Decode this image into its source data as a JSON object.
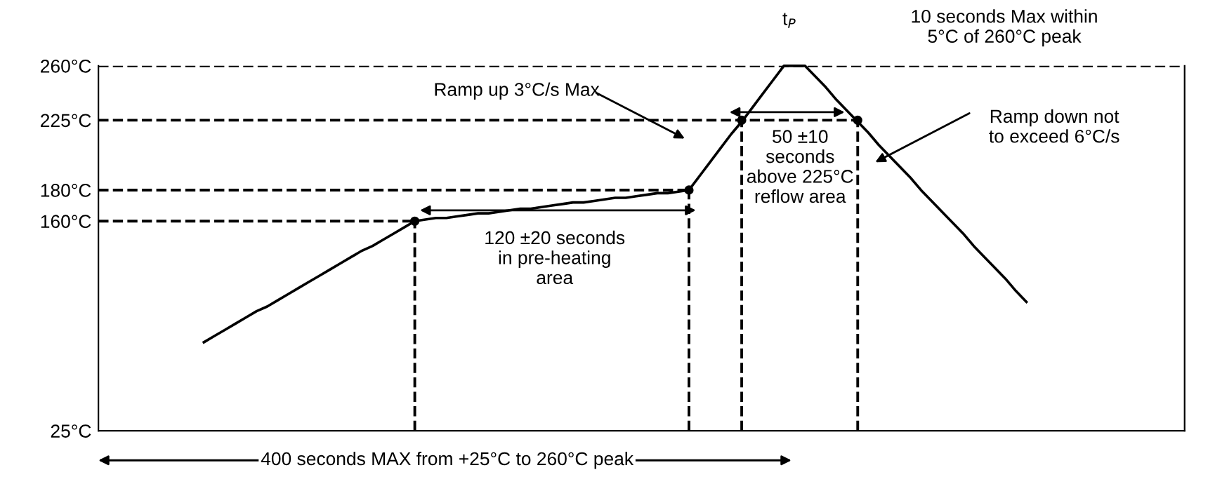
{
  "chart_data": {
    "type": "line",
    "categories": [
      null,
      null,
      null,
      null,
      null,
      null,
      null,
      null,
      null,
      null,
      null,
      null,
      null,
      null,
      null,
      null,
      null,
      null,
      null,
      null,
      null,
      null,
      null,
      null,
      null,
      null,
      null,
      null,
      null,
      null,
      null,
      null,
      null,
      null,
      null,
      null,
      null,
      null,
      null,
      null,
      null,
      null,
      null,
      null,
      null,
      null,
      null,
      null,
      null,
      null,
      null,
      null,
      null,
      null,
      null,
      null,
      null,
      null,
      null,
      null,
      null,
      null,
      null,
      null,
      null,
      null,
      null,
      null,
      null,
      null,
      null,
      null,
      null,
      null,
      null,
      null,
      null,
      null,
      null,
      null,
      null,
      null,
      null,
      null,
      null,
      null,
      null,
      null,
      null,
      null,
      null,
      null,
      null,
      null,
      null,
      null,
      null,
      null,
      null,
      null,
      null,
      null,
      null,
      null
    ],
    "series": [
      {
        "color": "#000000",
        "line_style": "solid",
        "values": [
          null,
          null,
          null,
          null,
          null,
          null,
          null,
          null,
          null,
          null,
          82,
          86,
          90,
          94,
          98,
          102,
          105,
          109,
          113,
          117,
          121,
          125,
          129,
          133,
          137,
          141,
          144,
          148,
          152,
          156,
          160,
          161,
          162,
          162,
          163,
          164,
          165,
          165,
          166,
          167,
          168,
          168,
          169,
          170,
          171,
          172,
          172,
          173,
          174,
          175,
          175,
          176,
          177,
          178,
          178,
          179,
          180,
          189,
          198,
          207,
          216,
          224,
          233,
          242,
          251,
          260,
          260,
          260,
          253,
          246,
          238,
          231,
          224,
          217,
          209,
          202,
          195,
          188,
          180,
          173,
          166,
          159,
          152,
          144,
          137,
          130,
          123,
          115,
          108,
          null,
          null,
          null,
          null,
          null,
          null,
          null,
          null,
          null,
          null,
          null,
          null,
          null,
          null,
          null
        ]
      },
      {
        "color": "#000000",
        "line_style": "dashed",
        "values": [
          225,
          225,
          225,
          225,
          225,
          225,
          225,
          225,
          225,
          225,
          225,
          225,
          225,
          225,
          225,
          225,
          225,
          225,
          225,
          225,
          225,
          225,
          225,
          225,
          225,
          225,
          225,
          225,
          225,
          225,
          225,
          225,
          225,
          225,
          225,
          225,
          225,
          225,
          225,
          225,
          225,
          225,
          225,
          225,
          225,
          225,
          225,
          225,
          225,
          225,
          225,
          225,
          225,
          225,
          225,
          225,
          225,
          225,
          225,
          225,
          225,
          225,
          225,
          225,
          225,
          225,
          225,
          225,
          225,
          225,
          225,
          225,
          225,
          null,
          null,
          null,
          null,
          null,
          null,
          null,
          null,
          null,
          null,
          null,
          null,
          null,
          null,
          null,
          null,
          null,
          null,
          null,
          null,
          null,
          null,
          null,
          null,
          null,
          null,
          null,
          null,
          null,
          null,
          null
        ]
      },
      {
        "color": "#000000",
        "line_style": "dashed",
        "values": [
          180,
          180,
          180,
          180,
          180,
          180,
          180,
          180,
          180,
          180,
          180,
          180,
          180,
          180,
          180,
          180,
          180,
          180,
          180,
          180,
          180,
          180,
          180,
          180,
          180,
          180,
          180,
          180,
          180,
          180,
          180,
          180,
          180,
          180,
          180,
          180,
          180,
          180,
          180,
          180,
          180,
          180,
          180,
          180,
          180,
          180,
          180,
          180,
          180,
          180,
          180,
          180,
          180,
          180,
          180,
          180,
          180,
          null,
          null,
          null,
          null,
          null,
          null,
          null,
          null,
          null,
          null,
          null,
          null,
          null,
          null,
          null,
          null,
          null,
          null,
          null,
          null,
          null,
          null,
          null,
          null,
          null,
          null,
          null,
          null,
          null,
          null,
          null,
          null,
          null,
          null,
          null,
          null,
          null,
          null,
          null,
          null,
          null,
          null,
          null,
          null,
          null,
          null,
          null
        ]
      },
      {
        "color": "#000000",
        "line_style": "dashed",
        "values": [
          160,
          160,
          160,
          160,
          160,
          160,
          160,
          160,
          160,
          160,
          160,
          160,
          160,
          160,
          160,
          160,
          160,
          160,
          160,
          160,
          160,
          160,
          160,
          160,
          160,
          160,
          160,
          160,
          160,
          160,
          160,
          null,
          null,
          null,
          null,
          null,
          null,
          null,
          null,
          null,
          null,
          null,
          null,
          null,
          null,
          null,
          null,
          null,
          null,
          null,
          null,
          null,
          null,
          null,
          null,
          null,
          null,
          null,
          null,
          null,
          null,
          null,
          null,
          null,
          null,
          null,
          null,
          null,
          null,
          null,
          null,
          null,
          null,
          null,
          null,
          null,
          null,
          null,
          null,
          null,
          null,
          null,
          null,
          null,
          null,
          null,
          null,
          null,
          null,
          null,
          null,
          null,
          null,
          null,
          null,
          null,
          null,
          null,
          null,
          null,
          null,
          null,
          null,
          null
        ]
      },
      {
        "type": "lollipop",
        "color": "#000000",
        "line_style": "dashed",
        "marker": "circle",
        "values": [
          null,
          null,
          null,
          null,
          null,
          null,
          null,
          null,
          null,
          null,
          null,
          null,
          null,
          null,
          null,
          null,
          null,
          null,
          null,
          null,
          null,
          null,
          null,
          null,
          null,
          null,
          null,
          null,
          null,
          null,
          160,
          null,
          null,
          null,
          null,
          null,
          null,
          null,
          null,
          null,
          null,
          null,
          null,
          null,
          null,
          null,
          null,
          null,
          null,
          null,
          null,
          null,
          null,
          null,
          null,
          null,
          180,
          null,
          null,
          null,
          null,
          225,
          null,
          null,
          null,
          null,
          null,
          null,
          null,
          null,
          null,
          null,
          225,
          null,
          null,
          null,
          null,
          null,
          null,
          null,
          null,
          null,
          null,
          null,
          null,
          null,
          null,
          null,
          null,
          null,
          null,
          null,
          null,
          null,
          null,
          null,
          null,
          null,
          null,
          null,
          null,
          null,
          null,
          null
        ]
      }
    ],
    "ylim": [
      25,
      260
    ],
    "yticks": [
      {
        "value": 25,
        "label": "25°C"
      },
      {
        "value": 160,
        "label": "160°C"
      },
      {
        "value": 180,
        "label": "180°C"
      },
      {
        "value": 225,
        "label": "225°C"
      },
      {
        "value": 260,
        "label": "260°C"
      }
    ],
    "tick_labels": "y",
    "grid": false,
    "marker": "none",
    "ref_lines": [
      {
        "axis": "y",
        "value": 260,
        "line_style": "dashed",
        "color": "#000000"
      }
    ],
    "annotations": [
      "Ramp up 3°C/s Max",
      "Ramp down not\nto exceed 6°C/s",
      "120 ±20 seconds\nin pre-heating\narea",
      "50 ±10\nseconds\nabove 225°C\nreflow area",
      "t$_{P}$",
      "10 seconds Max within\n5°C of 260°C peak",
      "400 seconds MAX from +25°C to 260°C peak"
    ]
  }
}
